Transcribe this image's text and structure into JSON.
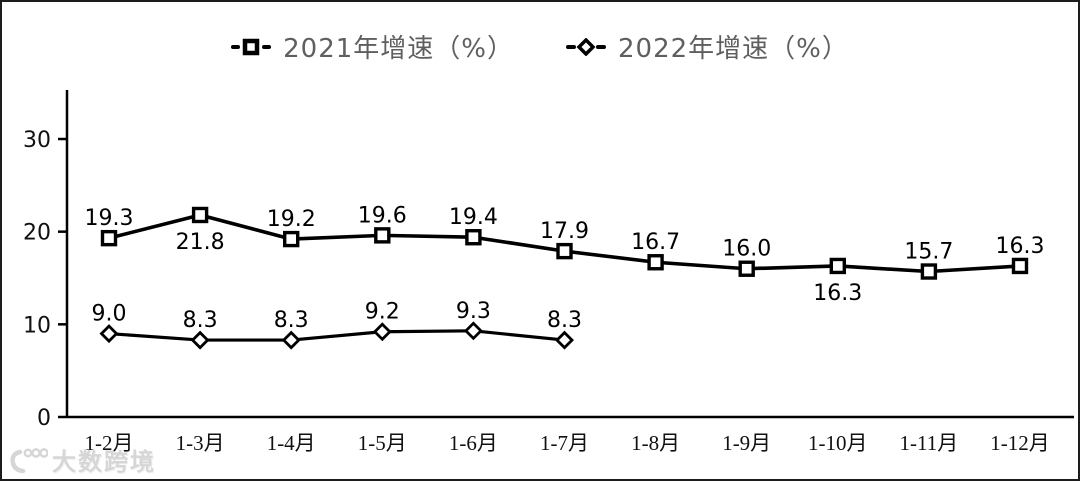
{
  "watermark": {
    "text": "大数跨境"
  },
  "chart_data": {
    "type": "line",
    "title": "",
    "xlabel": "",
    "ylabel": "",
    "categories": [
      "1-2月",
      "1-3月",
      "1-4月",
      "1-5月",
      "1-6月",
      "1-7月",
      "1-8月",
      "1-9月",
      "1-10月",
      "1-11月",
      "1-12月"
    ],
    "series": [
      {
        "name": "2021年增速（%）",
        "marker": "square",
        "values": [
          19.3,
          21.8,
          19.2,
          19.6,
          19.4,
          17.9,
          16.7,
          16.0,
          16.3,
          15.7,
          16.3
        ],
        "label_positions": [
          "above",
          "below",
          "above",
          "above",
          "above",
          "above",
          "above",
          "above",
          "below",
          "above",
          "above"
        ]
      },
      {
        "name": "2022年增速（%）",
        "marker": "diamond",
        "values": [
          9.0,
          8.3,
          8.3,
          9.2,
          9.3,
          8.3
        ],
        "label_positions": [
          "above",
          "above",
          "above",
          "above",
          "above",
          "above"
        ]
      }
    ],
    "yticks": [
      0,
      10,
      20,
      30
    ],
    "ylim": [
      0,
      35.3
    ],
    "grid": false,
    "legend_position": "top",
    "line_color": "#000000",
    "marker_fill": "#ffffff"
  }
}
